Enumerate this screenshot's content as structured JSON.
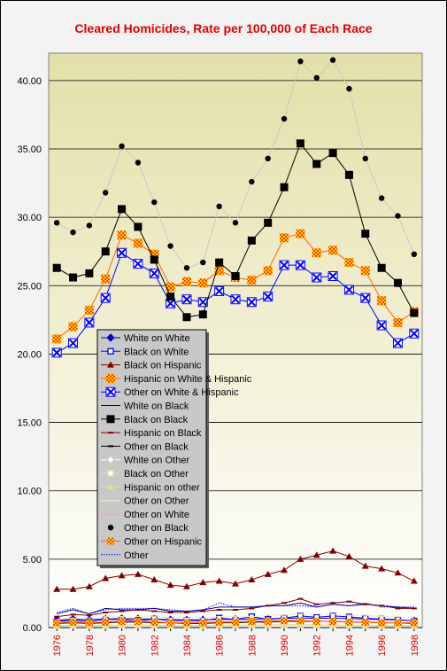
{
  "chart_data": {
    "type": "line",
    "title": "Cleared Homicides, Rate per 100,000 of Each Race",
    "xlabel": "",
    "ylabel": "",
    "ylim": [
      0,
      42
    ],
    "yticks": [
      "0.00",
      "5.00",
      "10.00",
      "15.00",
      "20.00",
      "25.00",
      "30.00",
      "35.00",
      "40.00"
    ],
    "x": [
      1976,
      1977,
      1978,
      1979,
      1980,
      1981,
      1982,
      1983,
      1984,
      1985,
      1986,
      1987,
      1988,
      1989,
      1990,
      1991,
      1992,
      1993,
      1994,
      1995,
      1996,
      1997,
      1998
    ],
    "xtick_labels": [
      "1976",
      "1978",
      "1980",
      "1982",
      "1984",
      "1986",
      "1988",
      "1990",
      "1992",
      "1994",
      "1996",
      "1998"
    ],
    "grid": true,
    "legend_position": "lower-left",
    "colors": {
      "plot_bg_top": "#e4e0a8",
      "plot_bg_bottom": "#ffffff",
      "title": "#e00000",
      "x_tick": "#e00000",
      "legend_bg": "#c8c8c8"
    },
    "series": [
      {
        "name": "White on White",
        "color": "#0000c0",
        "marker": "diamond",
        "values": [
          0.55,
          0.6,
          0.58,
          0.62,
          0.66,
          0.64,
          0.62,
          0.58,
          0.56,
          0.57,
          0.6,
          0.6,
          0.62,
          0.64,
          0.68,
          0.7,
          0.68,
          0.68,
          0.66,
          0.62,
          0.58,
          0.55,
          0.5
        ]
      },
      {
        "name": "Black on White",
        "color": "#0000ff",
        "marker": "square-open",
        "values": [
          0.45,
          0.55,
          0.45,
          0.6,
          0.6,
          0.5,
          0.62,
          0.52,
          0.52,
          0.5,
          0.7,
          0.6,
          0.8,
          0.6,
          0.7,
          0.85,
          0.75,
          0.85,
          0.78,
          0.68,
          0.62,
          0.58,
          0.48
        ]
      },
      {
        "name": "Black on Hispanic",
        "color": "#800000",
        "marker": "triangle",
        "values": [
          2.8,
          2.8,
          3.0,
          3.6,
          3.8,
          3.9,
          3.5,
          3.1,
          3.0,
          3.3,
          3.4,
          3.2,
          3.5,
          3.9,
          4.2,
          5.0,
          5.3,
          5.6,
          5.2,
          4.5,
          4.3,
          4.0,
          3.4
        ]
      },
      {
        "name": "Hispanic on White & Hispanic",
        "color": "#ff6600",
        "marker": "x-square",
        "values": [
          21.1,
          22.0,
          23.2,
          25.5,
          28.7,
          28.1,
          27.3,
          24.9,
          25.3,
          25.2,
          26.1,
          25.6,
          25.4,
          26.1,
          28.5,
          28.8,
          27.4,
          27.6,
          26.7,
          26.1,
          23.9,
          22.3,
          23.1
        ]
      },
      {
        "name": "Other on White & Hispanic",
        "color": "#0000ff",
        "marker": "x-square-blue",
        "values": [
          20.1,
          20.8,
          22.3,
          24.1,
          27.4,
          26.6,
          25.9,
          23.7,
          24.0,
          23.8,
          24.6,
          24.0,
          23.8,
          24.2,
          26.5,
          26.5,
          25.6,
          25.7,
          24.7,
          24.1,
          22.1,
          20.8,
          21.5
        ]
      },
      {
        "name": "White on Black",
        "color": "#000080",
        "marker": "none",
        "values": [
          1.0,
          1.3,
          1.0,
          1.4,
          1.3,
          1.3,
          1.4,
          1.2,
          1.2,
          1.3,
          1.5,
          1.5,
          1.5,
          1.6,
          1.6,
          1.8,
          1.5,
          1.7,
          1.6,
          1.7,
          1.6,
          1.5,
          1.4
        ]
      },
      {
        "name": "Black on Black",
        "color": "#000000",
        "marker": "square-filled",
        "values": [
          26.3,
          25.6,
          25.9,
          27.5,
          30.6,
          29.3,
          26.9,
          24.2,
          22.7,
          22.9,
          26.7,
          25.7,
          28.3,
          29.6,
          32.2,
          35.4,
          33.9,
          34.7,
          33.1,
          28.8,
          26.3,
          25.2,
          23.0
        ]
      },
      {
        "name": "Hispanic on Black",
        "color": "#800000",
        "marker": "dash",
        "values": [
          0.8,
          0.95,
          0.9,
          1.1,
          1.2,
          1.3,
          1.2,
          1.1,
          1.1,
          1.2,
          1.3,
          1.3,
          1.4,
          1.6,
          1.8,
          2.1,
          1.7,
          1.8,
          1.9,
          1.7,
          1.6,
          1.4,
          1.4
        ]
      },
      {
        "name": "Other on Black",
        "color": "#000000",
        "marker": "dash-black",
        "values": [
          0.3,
          0.35,
          0.3,
          0.35,
          0.4,
          0.4,
          0.35,
          0.35,
          0.3,
          0.3,
          0.35,
          0.35,
          0.4,
          0.4,
          0.45,
          0.45,
          0.45,
          0.45,
          0.4,
          0.4,
          0.35,
          0.35,
          0.3
        ]
      },
      {
        "name": "White on Other",
        "color": "#ffffff",
        "marker": "diamond-white",
        "values": [
          0.2,
          0.22,
          0.2,
          0.22,
          0.25,
          0.25,
          0.22,
          0.2,
          0.2,
          0.2,
          0.22,
          0.22,
          0.25,
          0.25,
          0.28,
          0.28,
          0.25,
          0.25,
          0.22,
          0.22,
          0.2,
          0.2,
          0.18
        ]
      },
      {
        "name": "Black on Other",
        "color": "#e0e0a0",
        "marker": "square-open-yellow",
        "values": [
          0.15,
          0.18,
          0.15,
          0.18,
          0.2,
          0.2,
          0.18,
          0.15,
          0.15,
          0.15,
          0.18,
          0.18,
          0.2,
          0.2,
          0.22,
          0.22,
          0.2,
          0.2,
          0.18,
          0.18,
          0.15,
          0.15,
          0.15
        ]
      },
      {
        "name": "Hispanic on other",
        "color": "#e0e0a0",
        "marker": "triangle-yellow",
        "values": [
          0.1,
          0.12,
          0.1,
          0.12,
          0.15,
          0.15,
          0.12,
          0.1,
          0.1,
          0.1,
          0.12,
          0.12,
          0.15,
          0.15,
          0.15,
          0.15,
          0.15,
          0.15,
          0.12,
          0.12,
          0.1,
          0.1,
          0.1
        ]
      },
      {
        "name": "Other on Other",
        "color": "#f0f0c0",
        "marker": "none",
        "values": [
          0.6,
          0.7,
          0.7,
          0.8,
          0.8,
          0.8,
          0.8,
          0.7,
          0.7,
          0.7,
          0.8,
          0.8,
          0.8,
          0.9,
          0.9,
          1.0,
          1.0,
          1.0,
          0.9,
          0.9,
          0.8,
          0.8,
          0.7
        ]
      },
      {
        "name": "Other on White",
        "color": "#ff99cc",
        "marker": "none",
        "values": [
          0.4,
          0.45,
          0.4,
          0.45,
          0.5,
          0.5,
          0.45,
          0.4,
          0.4,
          0.4,
          0.45,
          0.45,
          0.5,
          0.5,
          0.55,
          0.55,
          0.5,
          0.5,
          0.45,
          0.45,
          0.4,
          0.4,
          0.35
        ]
      },
      {
        "name": "Other on Black",
        "color": "#c8c8c8",
        "marker": "circle-black",
        "values": [
          29.6,
          28.9,
          29.4,
          31.8,
          35.2,
          34.0,
          31.1,
          27.9,
          26.3,
          26.7,
          30.8,
          29.6,
          32.6,
          34.3,
          37.2,
          41.4,
          40.2,
          41.5,
          39.4,
          34.3,
          31.4,
          30.1,
          27.3
        ]
      },
      {
        "name": "Other on Hispanic",
        "color": "#ff6600",
        "marker": "checker",
        "values": [
          0.35,
          0.4,
          0.35,
          0.4,
          0.45,
          0.45,
          0.4,
          0.35,
          0.35,
          0.35,
          0.4,
          0.4,
          0.45,
          0.45,
          0.5,
          0.5,
          0.45,
          0.45,
          0.4,
          0.4,
          0.35,
          0.35,
          0.35
        ]
      },
      {
        "name": "Other",
        "color": "#0000ff",
        "marker": "dotted",
        "values": [
          1.1,
          1.4,
          1.0,
          1.3,
          1.4,
          1.4,
          1.4,
          1.3,
          1.2,
          1.3,
          1.8,
          1.5,
          1.5,
          1.6,
          1.6,
          1.6,
          1.5,
          1.7,
          1.6,
          1.8,
          1.5,
          1.5,
          1.5
        ]
      }
    ]
  }
}
